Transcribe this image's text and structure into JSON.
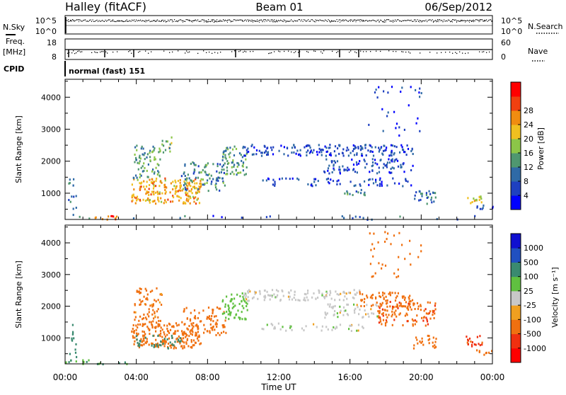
{
  "header": {
    "station": "Halley (fitACF)",
    "beam": "Beam 01",
    "date": "06/Sep/2012"
  },
  "left_labels": {
    "nsky": "N.Sky",
    "freq_line1": "Freq.",
    "freq_line2": "[MHz]",
    "cpid": "CPID"
  },
  "right_labels": {
    "nsearch": "N.Search",
    "nave": "Nave"
  },
  "cpid_text": "normal (fast) 151",
  "strip_ticks": {
    "nsky_left": [
      "10^5",
      "10^0"
    ],
    "nsky_right": [
      "10^5",
      "10^0"
    ],
    "freq_left": [
      "18",
      "8"
    ],
    "freq_right": [
      "60",
      "0"
    ]
  },
  "colors": {
    "power": [
      "#0000ff",
      "#1e40c0",
      "#2f6aa6",
      "#4f9770",
      "#8cc648",
      "#f0c020",
      "#f08c10",
      "#f04010",
      "#ff0000"
    ],
    "velocity": [
      "#1010d0",
      "#2050c0",
      "#3a8a70",
      "#60c040",
      "#c8c8c8",
      "#f0a020",
      "#f07010",
      "#f03010",
      "#ff0000"
    ]
  },
  "chart_data": [
    {
      "type": "heatmap",
      "panel": "power",
      "xlabel": "",
      "ylabel": "Slant Range [km]",
      "xticks": [
        "00:00",
        "04:00",
        "08:00",
        "12:00",
        "16:00",
        "20:00",
        "00:00"
      ],
      "yticks": [
        1000,
        2000,
        3000,
        4000
      ],
      "ylim": [
        180,
        4560
      ],
      "x_hours": [
        0,
        24
      ],
      "colorbar_label": "Power [dB]",
      "colorbar_ticks": [
        "4",
        "8",
        "12",
        "16",
        "20",
        "24",
        "28"
      ],
      "regions": [
        {
          "t0": 3.7,
          "t1": 7.6,
          "r0": 700,
          "r1": 1500,
          "v": 24,
          "density": 0.75
        },
        {
          "t0": 3.8,
          "t1": 5.4,
          "r0": 1500,
          "r1": 2600,
          "v": 15,
          "density": 0.45
        },
        {
          "t0": 5.4,
          "t1": 6.1,
          "r0": 2200,
          "r1": 2800,
          "v": 16,
          "density": 0.35
        },
        {
          "t0": 6.5,
          "t1": 9.0,
          "r0": 1100,
          "r1": 2000,
          "v": 12,
          "density": 0.45
        },
        {
          "t0": 8.8,
          "t1": 10.2,
          "r0": 1600,
          "r1": 2500,
          "v": 14,
          "density": 0.6
        },
        {
          "t0": 10.0,
          "t1": 19.5,
          "r0": 2200,
          "r1": 2550,
          "v": 7,
          "density": 0.6
        },
        {
          "t0": 14.5,
          "t1": 19.5,
          "r0": 1650,
          "r1": 2100,
          "v": 7,
          "density": 0.45
        },
        {
          "t0": 11.0,
          "t1": 19.5,
          "r0": 1250,
          "r1": 1500,
          "v": 6,
          "density": 0.35
        },
        {
          "t0": 15.5,
          "t1": 16.8,
          "r0": 950,
          "r1": 1150,
          "v": 12,
          "density": 0.6
        },
        {
          "t0": 19.5,
          "t1": 20.8,
          "r0": 700,
          "r1": 1100,
          "v": 10,
          "density": 0.55
        },
        {
          "t0": 22.5,
          "t1": 23.4,
          "r0": 700,
          "r1": 950,
          "v": 22,
          "density": 0.75
        },
        {
          "t0": 23.0,
          "t1": 24.0,
          "r0": 480,
          "r1": 650,
          "v": 6,
          "density": 0.5
        },
        {
          "t0": 1.5,
          "t1": 3.0,
          "r0": 200,
          "r1": 320,
          "v": 28,
          "density": 0.7
        },
        {
          "t0": 0.0,
          "t1": 24.0,
          "r0": 200,
          "r1": 330,
          "v": 8,
          "density": 0.08
        },
        {
          "t0": 17.0,
          "t1": 20.0,
          "r0": 2800,
          "r1": 4400,
          "v": 6,
          "density": 0.07
        },
        {
          "t0": 0.1,
          "t1": 0.6,
          "r0": 300,
          "r1": 1500,
          "v": 9,
          "density": 0.25
        }
      ]
    },
    {
      "type": "heatmap",
      "panel": "velocity",
      "xlabel": "Time UT",
      "ylabel": "Slant Range [km]",
      "xticks": [
        "00:00",
        "04:00",
        "08:00",
        "12:00",
        "16:00",
        "20:00",
        "00:00"
      ],
      "yticks": [
        1000,
        2000,
        3000,
        4000
      ],
      "ylim": [
        180,
        4560
      ],
      "x_hours": [
        0,
        24
      ],
      "colorbar_label": "Velocity [m s⁻¹]",
      "colorbar_ticks": [
        "1000",
        "500",
        "100",
        "25",
        "-25",
        "-100",
        "-500",
        "-1000"
      ],
      "regions": [
        {
          "t0": 3.7,
          "t1": 7.6,
          "r0": 700,
          "r1": 1500,
          "v": -300,
          "density": 0.7
        },
        {
          "t0": 3.7,
          "t1": 6.5,
          "r0": 700,
          "r1": 1100,
          "v": 200,
          "density": 0.35
        },
        {
          "t0": 3.8,
          "t1": 5.4,
          "r0": 1500,
          "r1": 2600,
          "v": -150,
          "density": 0.45
        },
        {
          "t0": 6.5,
          "t1": 9.0,
          "r0": 1100,
          "r1": 2000,
          "v": -200,
          "density": 0.45
        },
        {
          "t0": 8.8,
          "t1": 10.2,
          "r0": 1600,
          "r1": 2500,
          "v": 60,
          "density": 0.55
        },
        {
          "t0": 10.0,
          "t1": 16.5,
          "r0": 2200,
          "r1": 2550,
          "v": 0,
          "density": 0.55
        },
        {
          "t0": 16.5,
          "t1": 19.5,
          "r0": 2000,
          "r1": 2500,
          "v": -300,
          "density": 0.55
        },
        {
          "t0": 14.5,
          "t1": 17.5,
          "r0": 1650,
          "r1": 2100,
          "v": 0,
          "density": 0.4
        },
        {
          "t0": 11.0,
          "t1": 17.0,
          "r0": 1250,
          "r1": 1500,
          "v": 0,
          "density": 0.3
        },
        {
          "t0": 17.5,
          "t1": 20.8,
          "r0": 1400,
          "r1": 2200,
          "v": -400,
          "density": 0.45
        },
        {
          "t0": 19.5,
          "t1": 20.8,
          "r0": 700,
          "r1": 1100,
          "v": -250,
          "density": 0.5
        },
        {
          "t0": 22.5,
          "t1": 23.4,
          "r0": 700,
          "r1": 1100,
          "v": -700,
          "density": 0.6
        },
        {
          "t0": 23.0,
          "t1": 24.0,
          "r0": 480,
          "r1": 650,
          "v": -300,
          "density": 0.5
        },
        {
          "t0": 0.0,
          "t1": 3.5,
          "r0": 200,
          "r1": 330,
          "v": 100,
          "density": 0.4
        },
        {
          "t0": 17.0,
          "t1": 20.0,
          "r0": 2800,
          "r1": 4400,
          "v": -300,
          "density": 0.08
        },
        {
          "t0": 0.1,
          "t1": 0.6,
          "r0": 300,
          "r1": 1500,
          "v": 300,
          "density": 0.25
        }
      ]
    }
  ]
}
